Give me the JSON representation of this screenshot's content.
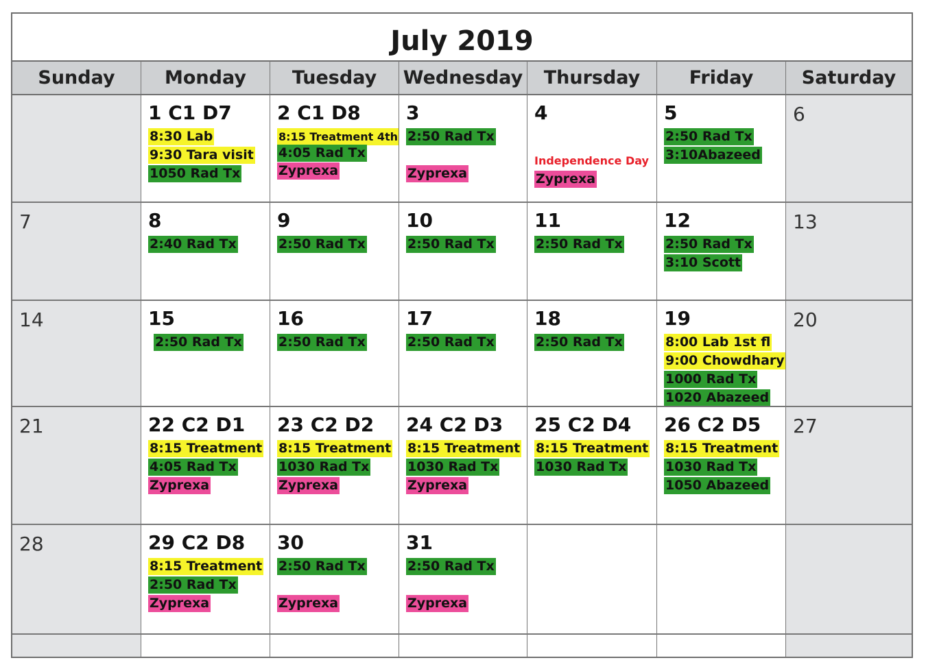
{
  "title": "July 2019",
  "weekdays": [
    "Sunday",
    "Monday",
    "Tuesday",
    "Wednesday",
    "Thursday",
    "Friday",
    "Saturday"
  ],
  "colors": {
    "yellow": "#f6f42a",
    "green": "#2d9b2f",
    "pink": "#ec4d9a",
    "holiday": "#e8202a",
    "weekend": "#e3e4e6"
  },
  "days": {
    "d1": {
      "label": "1 C1 D7",
      "events": [
        "8:30 Lab",
        "9:30 Tara visit",
        "1050 Rad Tx"
      ]
    },
    "d2": {
      "label": "2 C1 D8",
      "events": [
        "8:15 Treatment 4th",
        "4:05 Rad Tx",
        "Zyprexa"
      ]
    },
    "d3": {
      "label": "3",
      "events": [
        "2:50 Rad Tx",
        "Zyprexa"
      ]
    },
    "d4": {
      "label": "4",
      "holiday": "Independence Day",
      "events": [
        "Zyprexa"
      ]
    },
    "d5": {
      "label": "5",
      "events": [
        "2:50 Rad Tx",
        "3:10Abazeed"
      ]
    },
    "d6": {
      "label": "6"
    },
    "d7": {
      "label": "7"
    },
    "d8": {
      "label": "8",
      "events": [
        "2:40 Rad Tx"
      ]
    },
    "d9": {
      "label": "9",
      "events": [
        "2:50 Rad Tx"
      ]
    },
    "d10": {
      "label": "10",
      "events": [
        "2:50 Rad Tx"
      ]
    },
    "d11": {
      "label": "11",
      "events": [
        "2:50 Rad Tx"
      ]
    },
    "d12": {
      "label": "12",
      "events": [
        "2:50 Rad Tx",
        "3:10 Scott"
      ]
    },
    "d13": {
      "label": "13"
    },
    "d14": {
      "label": "14"
    },
    "d15": {
      "label": "15",
      "events": [
        "2:50 Rad Tx"
      ]
    },
    "d16": {
      "label": "16",
      "events": [
        "2:50 Rad Tx"
      ]
    },
    "d17": {
      "label": "17",
      "events": [
        "2:50 Rad Tx"
      ]
    },
    "d18": {
      "label": "18",
      "events": [
        "2:50 Rad Tx"
      ]
    },
    "d19": {
      "label": "19",
      "events": [
        "8:00 Lab 1st fl",
        "9:00 Chowdhary",
        "1000 Rad Tx",
        "1020 Abazeed"
      ]
    },
    "d20": {
      "label": "20"
    },
    "d21": {
      "label": "21"
    },
    "d22": {
      "label": "22 C2 D1",
      "events": [
        "8:15 Treatment",
        "4:05 Rad Tx",
        "Zyprexa"
      ]
    },
    "d23": {
      "label": "23 C2 D2",
      "events": [
        "8:15 Treatment",
        "1030 Rad Tx",
        "Zyprexa"
      ]
    },
    "d24": {
      "label": "24 C2 D3",
      "events": [
        "8:15 Treatment",
        "1030 Rad Tx",
        "Zyprexa"
      ]
    },
    "d25": {
      "label": "25 C2 D4",
      "events": [
        "8:15 Treatment",
        "1030 Rad Tx"
      ]
    },
    "d26": {
      "label": "26 C2 D5",
      "events": [
        "8:15 Treatment",
        "1030 Rad Tx",
        "1050 Abazeed"
      ]
    },
    "d27": {
      "label": "27"
    },
    "d28": {
      "label": "28"
    },
    "d29": {
      "label": "29 C2 D8",
      "events": [
        "8:15 Treatment",
        "2:50 Rad Tx",
        "Zyprexa"
      ]
    },
    "d30": {
      "label": "30",
      "events": [
        "2:50 Rad Tx",
        "Zyprexa"
      ]
    },
    "d31": {
      "label": "31",
      "events": [
        "2:50 Rad Tx",
        "Zyprexa"
      ]
    }
  }
}
